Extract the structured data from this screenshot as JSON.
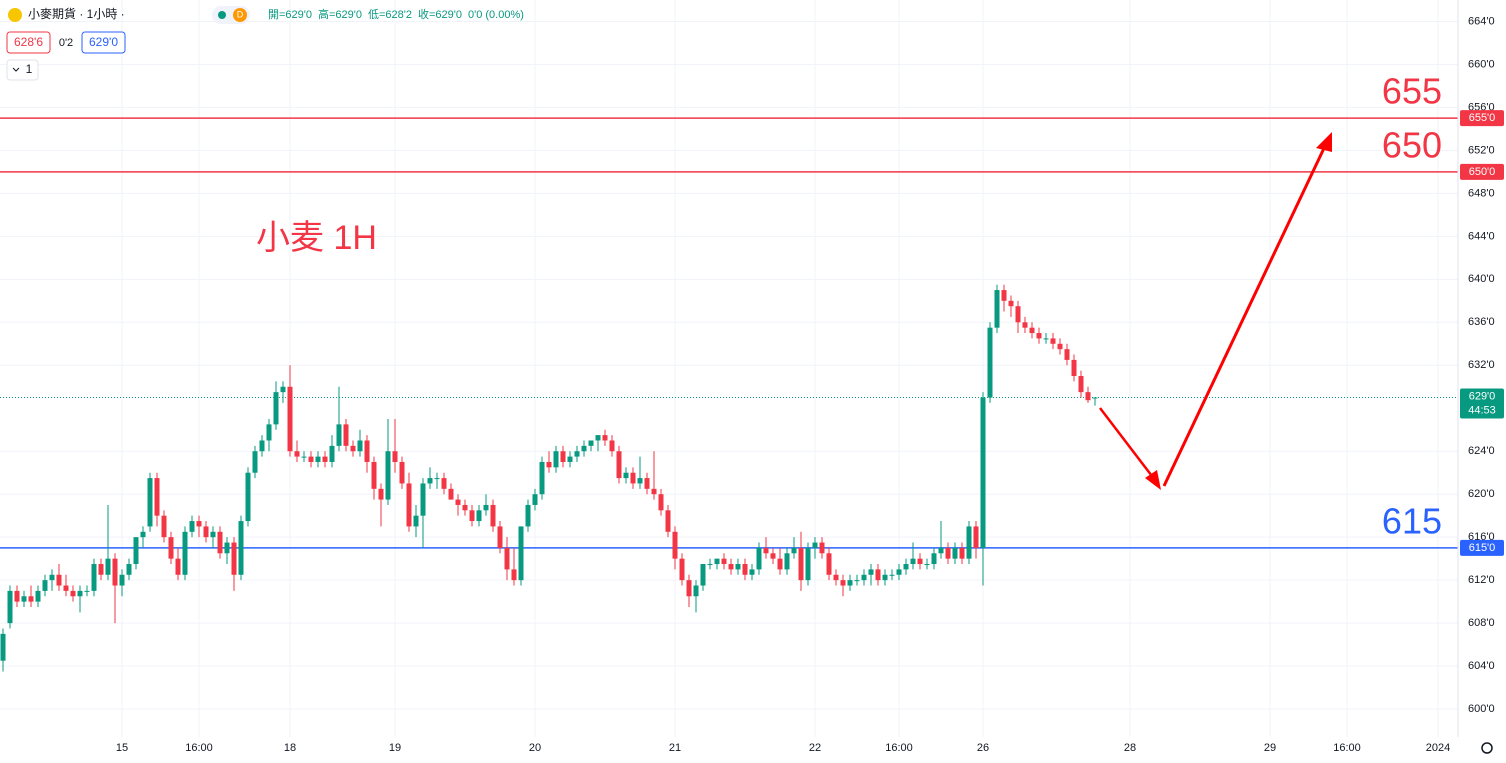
{
  "chart_data": {
    "type": "candlestick",
    "symbol": "小麥期貨 · 1小時 ·",
    "interval_badge": "D",
    "legend": [
      "開=629'0",
      "高=629'0",
      "低=628'2",
      "收=629'0",
      "0'0 (0.00%)"
    ],
    "bid": "628'6",
    "spread": "0'2",
    "ask": "629'0",
    "indicator_count": "1",
    "annotation": "小麦 1H",
    "up_color": "#089981",
    "down_color": "#f23645",
    "ylim": [
      597.4,
      666
    ],
    "yticks": [
      {
        "value": 664,
        "label": "664'0"
      },
      {
        "value": 660,
        "label": "660'0"
      },
      {
        "value": 656,
        "label": "656'0"
      },
      {
        "value": 652,
        "label": "652'0"
      },
      {
        "value": 648,
        "label": "648'0"
      },
      {
        "value": 644,
        "label": "644'0"
      },
      {
        "value": 640,
        "label": "640'0"
      },
      {
        "value": 636,
        "label": "636'0"
      },
      {
        "value": 632,
        "label": "632'0"
      },
      {
        "value": 624,
        "label": "624'0"
      },
      {
        "value": 620,
        "label": "620'0"
      },
      {
        "value": 616,
        "label": "616'0"
      },
      {
        "value": 612,
        "label": "612'0"
      },
      {
        "value": 608,
        "label": "608'0"
      },
      {
        "value": 604,
        "label": "604'0"
      },
      {
        "value": 600,
        "label": "600'0"
      }
    ],
    "xlim": [
      0,
      207
    ],
    "xticks": [
      {
        "value": 17,
        "label": "15"
      },
      {
        "value": 28,
        "label": "16:00"
      },
      {
        "value": 41,
        "label": "18"
      },
      {
        "value": 56,
        "label": "19"
      },
      {
        "value": 76,
        "label": "20"
      },
      {
        "value": 96,
        "label": "21"
      },
      {
        "value": 116,
        "label": "22"
      },
      {
        "value": 128,
        "label": "16:00"
      },
      {
        "value": 140,
        "label": "26"
      },
      {
        "value": 161,
        "label": "28"
      },
      {
        "value": 181,
        "label": "29"
      },
      {
        "value": 192,
        "label": "16:00"
      },
      {
        "value": 205,
        "label": "2024"
      }
    ],
    "grid": true,
    "hlines": [
      {
        "value": 655,
        "color": "#f23645",
        "label": "655",
        "axis_label": "655'0"
      },
      {
        "value": 650,
        "color": "#f23645",
        "label": "650",
        "axis_label": "650'0"
      },
      {
        "value": 615,
        "color": "#2962ff",
        "label": "615",
        "axis_label": "615'0"
      }
    ],
    "last_price": {
      "value": 629,
      "label": "629'0",
      "countdown": "44:53"
    },
    "ohlc": [
      [
        604.5,
        607.5,
        603.5,
        607
      ],
      [
        608,
        611.5,
        607.5,
        611
      ],
      [
        611,
        611.5,
        609.5,
        610
      ],
      [
        610,
        611,
        609.5,
        610.5
      ],
      [
        610.5,
        611.5,
        609.5,
        610
      ],
      [
        610,
        611.5,
        609.5,
        611
      ],
      [
        611,
        612.5,
        610.5,
        612
      ],
      [
        612,
        613,
        611,
        612.5
      ],
      [
        612.5,
        613.5,
        611,
        611.5
      ],
      [
        611.5,
        612.5,
        610.5,
        611
      ],
      [
        611,
        611.5,
        610,
        610.5
      ],
      [
        610.5,
        611.5,
        609,
        611
      ],
      [
        611,
        611.5,
        610.5,
        611
      ],
      [
        611,
        614,
        610.5,
        613.5
      ],
      [
        613.5,
        614,
        612,
        612.5
      ],
      [
        612.5,
        619,
        612,
        614
      ],
      [
        614,
        614.5,
        608,
        611.5
      ],
      [
        611.5,
        613,
        610.5,
        612.5
      ],
      [
        612.5,
        614,
        612,
        613.5
      ],
      [
        613.5,
        616,
        613,
        616
      ],
      [
        616,
        617,
        615,
        616.5
      ],
      [
        617,
        622,
        616.5,
        621.5
      ],
      [
        621.5,
        622,
        617,
        618
      ],
      [
        618,
        618.5,
        615.5,
        616
      ],
      [
        616,
        616.5,
        613.5,
        614
      ],
      [
        614,
        615,
        612,
        612.5
      ],
      [
        612.5,
        617,
        612,
        616.5
      ],
      [
        616.5,
        618,
        616,
        617.5
      ],
      [
        617.5,
        618,
        616,
        617
      ],
      [
        617,
        617.5,
        615.5,
        616
      ],
      [
        616,
        617,
        615,
        616.5
      ],
      [
        616.5,
        617,
        614,
        614.5
      ],
      [
        614.5,
        616,
        613.5,
        615.5
      ],
      [
        615.5,
        616,
        611,
        612.5
      ],
      [
        612.5,
        618,
        612,
        617.5
      ],
      [
        617.5,
        622.5,
        617,
        622
      ],
      [
        622,
        624.5,
        621.5,
        624
      ],
      [
        624,
        625.5,
        623.5,
        625
      ],
      [
        625,
        627,
        624,
        626.5
      ],
      [
        626.5,
        630.5,
        626,
        629.5
      ],
      [
        629.5,
        630.5,
        628.5,
        630
      ],
      [
        630,
        632,
        623.5,
        624
      ],
      [
        624,
        625,
        623,
        623.5
      ],
      [
        623.5,
        624,
        623,
        623.5
      ],
      [
        623.5,
        624,
        622.5,
        623
      ],
      [
        623,
        624,
        622.5,
        623.5
      ],
      [
        623.5,
        624,
        622.5,
        623
      ],
      [
        623,
        625.5,
        622.5,
        624.5
      ],
      [
        624.5,
        630,
        624,
        626.5
      ],
      [
        626.5,
        627,
        624,
        624.5
      ],
      [
        624.5,
        625,
        623.5,
        624
      ],
      [
        624,
        626,
        623.5,
        625
      ],
      [
        625,
        625.5,
        622,
        623
      ],
      [
        623,
        623.5,
        619.5,
        620.5
      ],
      [
        620.5,
        621,
        617,
        619.5
      ],
      [
        619.5,
        627,
        619,
        624
      ],
      [
        624,
        627,
        622,
        623
      ],
      [
        623,
        623.5,
        620.5,
        621
      ],
      [
        621,
        622,
        616.5,
        617
      ],
      [
        617,
        619,
        616,
        618
      ],
      [
        618,
        621.5,
        615,
        621
      ],
      [
        621,
        622.5,
        620.5,
        621.5
      ],
      [
        621.5,
        622,
        620.5,
        621.5
      ],
      [
        621.5,
        622,
        620,
        620.5
      ],
      [
        620.5,
        621,
        619.5,
        619.5
      ],
      [
        619.5,
        620,
        618,
        619
      ],
      [
        619,
        619.5,
        618,
        618.5
      ],
      [
        618.5,
        619,
        617,
        617.5
      ],
      [
        617.5,
        619,
        617,
        618.5
      ],
      [
        618.5,
        620,
        618,
        619
      ],
      [
        619,
        619.5,
        616.5,
        617
      ],
      [
        617,
        617.5,
        614.5,
        615
      ],
      [
        615,
        616,
        612,
        613
      ],
      [
        613,
        615,
        611.5,
        612
      ],
      [
        612,
        617,
        611.5,
        617
      ],
      [
        617,
        619.5,
        616.5,
        619
      ],
      [
        619,
        620.5,
        618.5,
        620
      ],
      [
        620,
        623.5,
        619.5,
        623
      ],
      [
        623,
        624,
        622,
        622.5
      ],
      [
        622.5,
        624.5,
        622,
        624
      ],
      [
        624,
        624.5,
        622.5,
        623
      ],
      [
        623,
        624,
        622.5,
        623.5
      ],
      [
        623.5,
        624.5,
        623,
        624
      ],
      [
        624,
        625,
        623.5,
        624.5
      ],
      [
        624.5,
        625,
        624,
        625
      ],
      [
        625,
        625.5,
        624,
        625.5
      ],
      [
        625.5,
        626,
        624.5,
        625
      ],
      [
        625,
        625.5,
        623.5,
        624
      ],
      [
        624,
        624.5,
        621,
        621.5
      ],
      [
        621.5,
        622.5,
        621,
        622
      ],
      [
        622,
        622.5,
        620.5,
        621
      ],
      [
        621,
        623.5,
        620.5,
        621.5
      ],
      [
        621.5,
        622,
        620,
        620.5
      ],
      [
        620.5,
        624,
        619.5,
        620
      ],
      [
        620,
        620.5,
        618,
        618.5
      ],
      [
        618.5,
        619,
        616,
        616.5
      ],
      [
        616.5,
        617,
        613,
        614
      ],
      [
        614,
        614.5,
        611.5,
        612
      ],
      [
        612,
        612.5,
        609.5,
        610.5
      ],
      [
        610.5,
        612,
        609,
        611.5
      ],
      [
        611.5,
        613.5,
        611,
        613.5
      ],
      [
        613.5,
        614,
        613,
        613.5
      ],
      [
        613.5,
        614,
        613,
        614
      ],
      [
        614,
        614.5,
        613,
        613.5
      ],
      [
        613.5,
        614,
        612.5,
        613
      ],
      [
        613,
        614,
        612.5,
        613.5
      ],
      [
        613.5,
        614,
        612,
        612.5
      ],
      [
        612.5,
        613.5,
        612,
        613
      ],
      [
        613,
        615.5,
        612.5,
        615
      ],
      [
        615,
        616,
        614,
        614.5
      ],
      [
        614.5,
        615,
        613.5,
        614
      ],
      [
        614,
        615,
        612.5,
        613
      ],
      [
        613,
        615,
        612.5,
        614.5
      ],
      [
        614.5,
        616,
        614,
        615
      ],
      [
        615,
        616.5,
        611,
        612
      ],
      [
        612,
        615.5,
        611.5,
        615
      ],
      [
        615,
        616,
        614,
        615.5
      ],
      [
        615.5,
        616,
        614,
        614.5
      ],
      [
        614.5,
        615,
        612,
        612.5
      ],
      [
        612.5,
        613,
        611.5,
        612
      ],
      [
        612,
        612.5,
        610.5,
        611.5
      ],
      [
        611.5,
        612.5,
        611,
        612
      ],
      [
        612,
        612.5,
        611.5,
        612
      ],
      [
        612,
        613,
        611.5,
        612.5
      ],
      [
        612.5,
        613.5,
        611.5,
        613
      ],
      [
        613,
        613.5,
        611.5,
        612
      ],
      [
        612,
        613,
        611.5,
        612.5
      ],
      [
        612.5,
        613,
        612,
        612.5
      ],
      [
        612.5,
        613.5,
        612,
        613
      ],
      [
        613,
        614,
        612.5,
        613.5
      ],
      [
        613.5,
        615.5,
        613,
        614
      ],
      [
        614,
        614.5,
        613,
        613.5
      ],
      [
        613.5,
        614,
        613,
        613.5
      ],
      [
        613.5,
        615,
        613,
        614.5
      ],
      [
        614.5,
        617.5,
        614,
        615
      ],
      [
        615,
        615.5,
        613.5,
        614
      ],
      [
        614,
        615.5,
        613.5,
        615
      ],
      [
        615,
        615.5,
        613.5,
        614
      ],
      [
        614,
        617.5,
        613.5,
        617
      ],
      [
        617,
        617.5,
        614,
        615
      ],
      [
        615,
        629.5,
        611.5,
        629
      ],
      [
        629,
        636,
        628.5,
        635.5
      ],
      [
        635.5,
        639.5,
        635,
        639
      ],
      [
        639,
        639.5,
        637,
        638
      ],
      [
        638,
        638.5,
        636.5,
        637.5
      ],
      [
        637.5,
        638,
        635,
        636
      ],
      [
        636,
        636.5,
        635,
        635.5
      ],
      [
        635.5,
        636,
        634.5,
        635
      ],
      [
        635,
        635.5,
        634,
        634.5
      ],
      [
        634.5,
        635,
        634,
        634.5
      ],
      [
        634.5,
        635,
        633.5,
        634
      ],
      [
        634,
        634.5,
        633,
        633.5
      ],
      [
        633.5,
        634,
        632,
        632.5
      ],
      [
        632.5,
        633,
        630.5,
        631
      ],
      [
        631,
        631.5,
        629,
        629.5
      ],
      [
        629.5,
        630,
        628.5,
        628.75
      ],
      [
        629,
        629,
        628.25,
        629
      ]
    ]
  }
}
